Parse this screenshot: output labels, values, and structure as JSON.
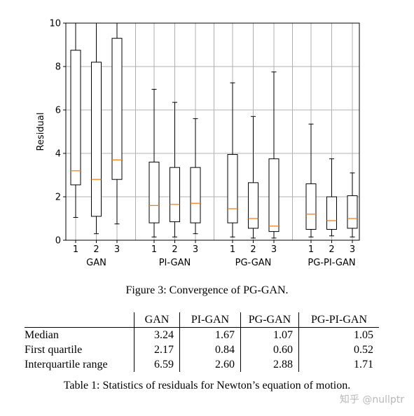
{
  "chart_data": {
    "type": "box",
    "ylabel": "Residual",
    "ylim": [
      0,
      10
    ],
    "yticks": [
      0,
      2,
      4,
      6,
      8,
      10
    ],
    "grid": true,
    "groups": [
      {
        "name": "GAN",
        "boxes": [
          {
            "label": "1",
            "whislo": 1.05,
            "q1": 2.55,
            "med": 3.2,
            "q3": 8.75,
            "whishi": 10
          },
          {
            "label": "2",
            "whislo": 0.3,
            "q1": 1.1,
            "med": 2.8,
            "q3": 8.2,
            "whishi": 10
          },
          {
            "label": "3",
            "whislo": 0.75,
            "q1": 2.8,
            "med": 3.7,
            "q3": 9.3,
            "whishi": 10
          }
        ]
      },
      {
        "name": "PI-GAN",
        "boxes": [
          {
            "label": "1",
            "whislo": 0.15,
            "q1": 0.8,
            "med": 1.6,
            "q3": 3.6,
            "whishi": 6.95
          },
          {
            "label": "2",
            "whislo": 0.15,
            "q1": 0.85,
            "med": 1.65,
            "q3": 3.35,
            "whishi": 6.35
          },
          {
            "label": "3",
            "whislo": 0.3,
            "q1": 0.8,
            "med": 1.7,
            "q3": 3.35,
            "whishi": 5.6
          }
        ]
      },
      {
        "name": "PG-GAN",
        "boxes": [
          {
            "label": "1",
            "whislo": 0.15,
            "q1": 0.8,
            "med": 1.45,
            "q3": 3.95,
            "whishi": 7.25
          },
          {
            "label": "2",
            "whislo": 0.1,
            "q1": 0.55,
            "med": 1.0,
            "q3": 2.65,
            "whishi": 5.7
          },
          {
            "label": "3",
            "whislo": 0.1,
            "q1": 0.4,
            "med": 0.65,
            "q3": 3.75,
            "whishi": 7.75
          }
        ]
      },
      {
        "name": "PG-PI-GAN",
        "boxes": [
          {
            "label": "1",
            "whislo": 0.15,
            "q1": 0.5,
            "med": 1.2,
            "q3": 2.6,
            "whishi": 5.35
          },
          {
            "label": "2",
            "whislo": 0.2,
            "q1": 0.5,
            "med": 0.9,
            "q3": 2.0,
            "whishi": 3.75
          },
          {
            "label": "3",
            "whislo": 0.15,
            "q1": 0.55,
            "med": 1.0,
            "q3": 2.05,
            "whishi": 3.1
          }
        ]
      }
    ],
    "colors": {
      "box": "#000000",
      "median": "#ff7f0e",
      "grid": "#b0b0b0"
    }
  },
  "figure_caption": "Figure 3: Convergence of PG-GAN.",
  "table": {
    "columns": [
      "GAN",
      "PI-GAN",
      "PG-GAN",
      "PG-PI-GAN"
    ],
    "rows": [
      {
        "label": "Median",
        "values": [
          "3.24",
          "1.67",
          "1.07",
          "1.05"
        ]
      },
      {
        "label": "First quartile",
        "values": [
          "2.17",
          "0.84",
          "0.60",
          "0.52"
        ]
      },
      {
        "label": "Interquartile range",
        "values": [
          "6.59",
          "2.60",
          "2.88",
          "1.71"
        ]
      }
    ],
    "caption": "Table 1: Statistics of residuals for Newton’s equation of motion."
  },
  "watermark": "知乎 @nullptr"
}
